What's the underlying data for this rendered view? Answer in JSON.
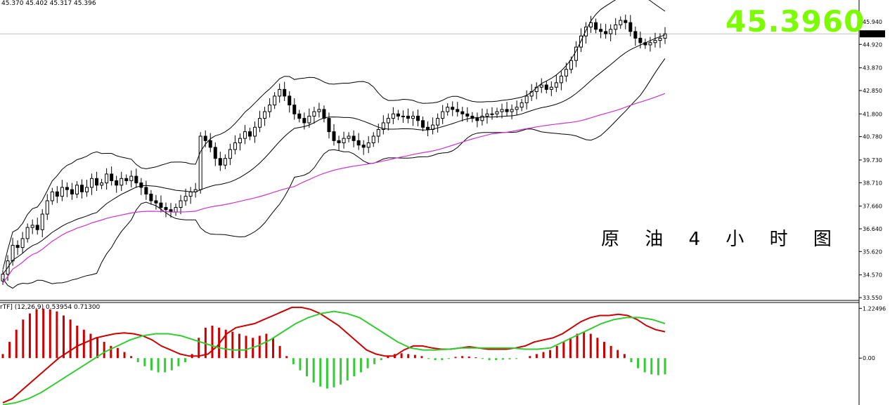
{
  "header": {
    "ohlc_text": "45.370 45.402 45.317 45.396",
    "current_price_big": "45.3960"
  },
  "annotation": "原 油 4 小 时 图",
  "chart_data": [
    {
      "type": "candlestick",
      "title": "",
      "price_axis_ticks": [
        "45.940",
        "44.920",
        "43.870",
        "42.850",
        "41.800",
        "40.780",
        "39.730",
        "38.710",
        "37.660",
        "36.640",
        "35.620",
        "34.570",
        "33.550"
      ],
      "price_axis_values": [
        45.94,
        44.92,
        43.87,
        42.85,
        41.8,
        40.78,
        39.73,
        38.71,
        37.66,
        36.64,
        35.62,
        34.57,
        33.55
      ],
      "current_price_tag": "45.396",
      "current_price": 45.396,
      "ylim": [
        33.55,
        46.6
      ],
      "close_series": [
        34.6,
        35.2,
        35.9,
        35.8,
        36.2,
        36.7,
        36.8,
        36.6,
        37.3,
        37.9,
        38.3,
        38.1,
        38.5,
        38.4,
        38.2,
        38.6,
        38.3,
        38.5,
        38.9,
        38.6,
        38.7,
        39.1,
        38.8,
        38.6,
        38.9,
        38.8,
        39.0,
        38.7,
        38.5,
        38.2,
        37.9,
        37.8,
        37.6,
        37.5,
        37.4,
        37.6,
        37.9,
        38.1,
        38.3,
        38.4,
        40.8,
        40.6,
        40.3,
        39.8,
        39.5,
        39.8,
        40.2,
        40.5,
        40.7,
        41.0,
        40.8,
        41.2,
        41.6,
        41.9,
        42.2,
        42.6,
        42.9,
        42.6,
        42.2,
        41.8,
        41.6,
        41.4,
        41.7,
        41.9,
        42.0,
        41.6,
        41.0,
        40.6,
        40.5,
        40.7,
        40.8,
        40.6,
        40.4,
        40.3,
        40.5,
        40.8,
        41.1,
        41.4,
        41.6,
        41.8,
        41.7,
        41.7,
        41.6,
        41.7,
        41.5,
        41.2,
        41.1,
        41.3,
        41.6,
        41.9,
        42.1,
        42.0,
        41.9,
        41.8,
        41.7,
        41.6,
        41.5,
        41.7,
        41.8,
        41.8,
        41.9,
        42.0,
        41.9,
        42.0,
        42.1,
        42.3,
        42.6,
        42.8,
        43.0,
        43.1,
        42.9,
        43.0,
        43.2,
        43.5,
        43.8,
        44.2,
        44.8,
        45.3,
        45.7,
        45.9,
        45.6,
        45.5,
        45.4,
        45.6,
        45.8,
        46.0,
        45.9,
        45.5,
        45.2,
        45.0,
        44.9,
        45.0,
        45.1,
        45.2,
        45.396
      ],
      "overlays": [
        {
          "name": "upper-band",
          "color": "#000000"
        },
        {
          "name": "middle-band",
          "color": "#000000"
        },
        {
          "name": "lower-band",
          "color": "#000000"
        },
        {
          "name": "moving-average",
          "color": "#cc33cc"
        }
      ],
      "grid": false
    },
    {
      "type": "macd",
      "label": "rTF] (12,26,9) 0.53954 0.71300",
      "axis_ticks": [
        "1.22496",
        "0.00"
      ],
      "axis_values": [
        1.22496,
        0.0
      ],
      "ylim": [
        -1.12,
        1.3
      ],
      "histogram": [
        0.1,
        0.4,
        0.7,
        0.95,
        1.1,
        1.2,
        1.22,
        1.2,
        1.15,
        1.05,
        0.95,
        0.8,
        0.7,
        0.6,
        0.5,
        0.4,
        0.3,
        0.25,
        0.15,
        0.05,
        -0.1,
        -0.2,
        -0.3,
        -0.35,
        -0.35,
        -0.3,
        -0.2,
        -0.1,
        0.1,
        0.5,
        0.75,
        0.8,
        0.75,
        0.7,
        0.65,
        0.6,
        0.55,
        0.5,
        0.55,
        0.6,
        0.5,
        0.3,
        0.05,
        -0.15,
        -0.3,
        -0.45,
        -0.6,
        -0.7,
        -0.75,
        -0.72,
        -0.65,
        -0.55,
        -0.45,
        -0.35,
        -0.25,
        -0.15,
        -0.05,
        0.05,
        0.1,
        0.12,
        0.1,
        0.08,
        0.05,
        -0.02,
        -0.05,
        -0.05,
        -0.02,
        0.03,
        0.05,
        0.04,
        0.02,
        -0.02,
        -0.05,
        -0.05,
        -0.04,
        -0.03,
        -0.02,
        0.0,
        0.05,
        0.1,
        0.15,
        0.2,
        0.3,
        0.4,
        0.5,
        0.6,
        0.65,
        0.6,
        0.5,
        0.4,
        0.3,
        0.2,
        0.1,
        -0.1,
        -0.25,
        -0.35,
        -0.4,
        -0.42,
        -0.4
      ],
      "macd_line": [
        -1.1,
        -1.0,
        -0.8,
        -0.6,
        -0.4,
        -0.2,
        0.0,
        0.15,
        0.3,
        0.4,
        0.5,
        0.55,
        0.6,
        0.62,
        0.6,
        0.55,
        0.45,
        0.3,
        0.2,
        0.1,
        0.05,
        0.05,
        0.1,
        0.3,
        0.6,
        0.75,
        0.8,
        0.85,
        0.95,
        1.05,
        1.15,
        1.25,
        1.25,
        1.2,
        1.1,
        0.95,
        0.8,
        0.6,
        0.4,
        0.2,
        0.1,
        0.05,
        0.05,
        0.2,
        0.3,
        0.3,
        0.25,
        0.22,
        0.22,
        0.25,
        0.28,
        0.25,
        0.22,
        0.22,
        0.22,
        0.25,
        0.3,
        0.4,
        0.45,
        0.5,
        0.6,
        0.75,
        0.9,
        1.0,
        1.05,
        1.05,
        1.08,
        1.05,
        0.95,
        0.8,
        0.7,
        0.65
      ],
      "signal_line": [
        -1.15,
        -1.1,
        -1.0,
        -0.85,
        -0.65,
        -0.45,
        -0.25,
        -0.05,
        0.15,
        0.3,
        0.45,
        0.55,
        0.6,
        0.6,
        0.55,
        0.45,
        0.35,
        0.25,
        0.2,
        0.2,
        0.3,
        0.45,
        0.65,
        0.85,
        1.0,
        1.1,
        1.15,
        1.1,
        1.0,
        0.8,
        0.6,
        0.4,
        0.25,
        0.2,
        0.2,
        0.22,
        0.25,
        0.25,
        0.25,
        0.25,
        0.25,
        0.22,
        0.22,
        0.25,
        0.4,
        0.55,
        0.7,
        0.85,
        0.95,
        1.0,
        1.0,
        0.95,
        0.85
      ],
      "colors": {
        "positive": "#cc0000",
        "negative": "#33cc33",
        "macd_line": "#cc0000",
        "signal_line": "#33cc33"
      }
    }
  ]
}
